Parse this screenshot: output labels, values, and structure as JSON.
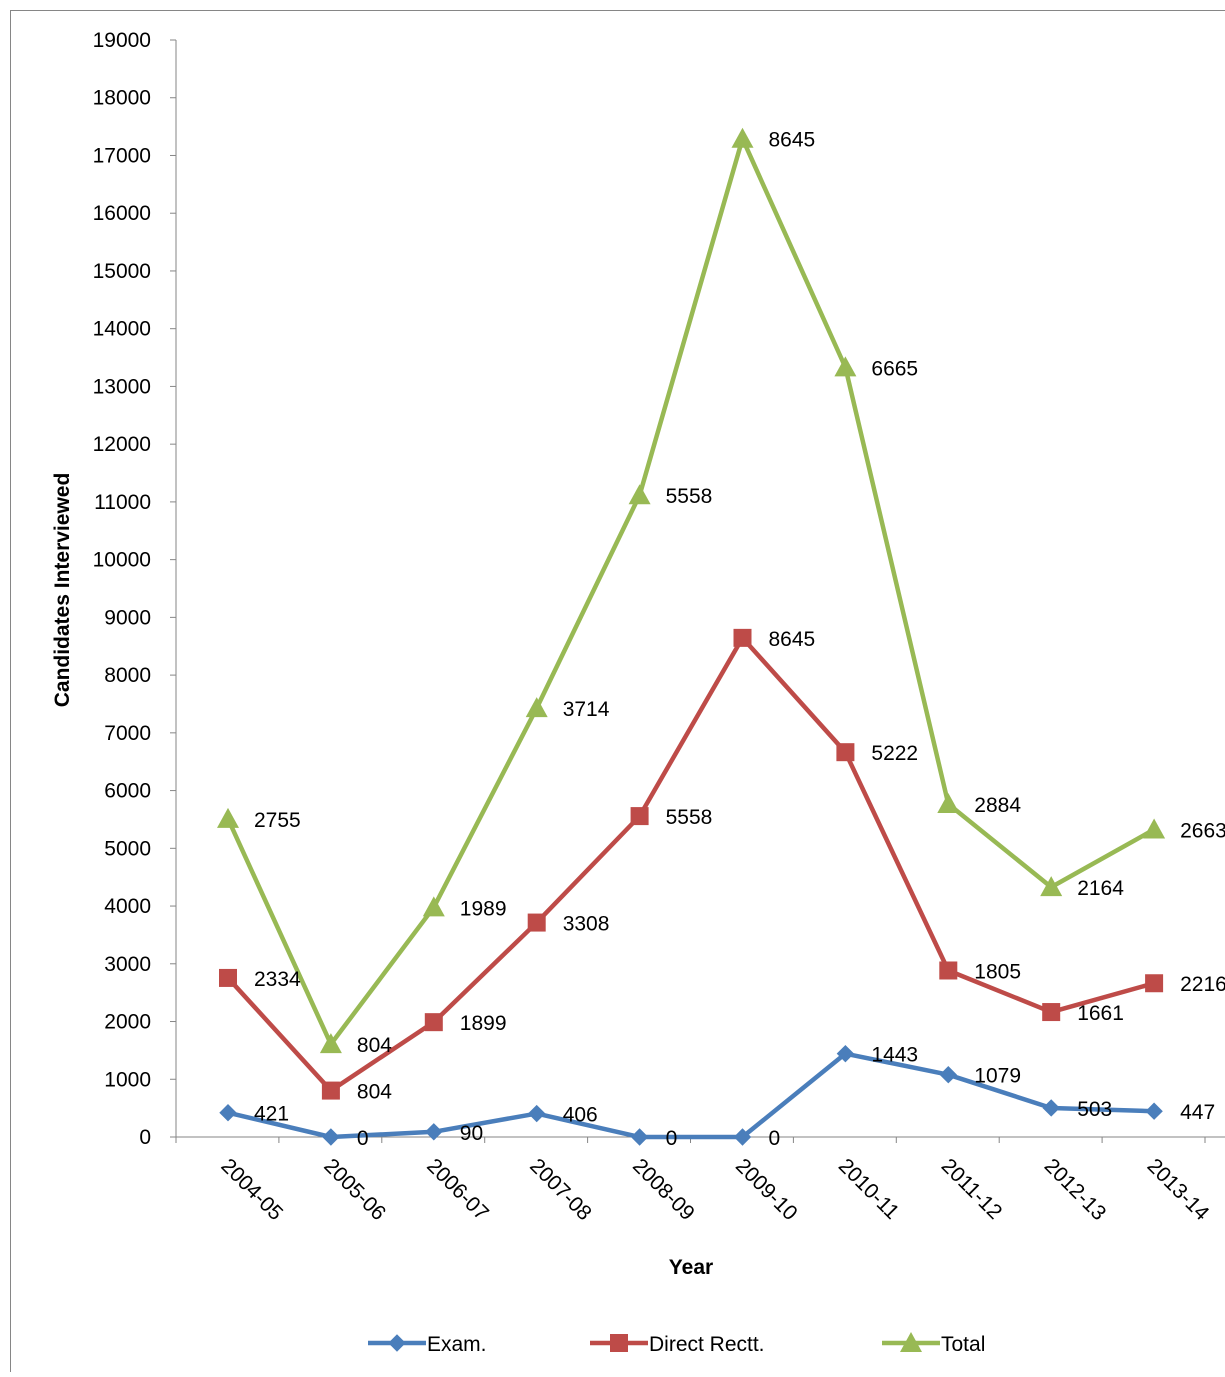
{
  "chart_data": {
    "type": "line",
    "xlabel": "Year",
    "ylabel": "Candidates Interviewed",
    "ylim": [
      0,
      19000
    ],
    "ytick_step": 1000,
    "grid": false,
    "legend_position": "bottom",
    "categories": [
      "2004-05",
      "2005-06",
      "2006-07",
      "2007-08",
      "2008-09",
      "2009-10",
      "2010-11",
      "2011-12",
      "2012-13",
      "2013-14"
    ],
    "series": [
      {
        "name": "Exam.",
        "color": "#4a7ebb",
        "marker": "diamond",
        "values": [
          421,
          0,
          90,
          406,
          0,
          0,
          1443,
          1079,
          503,
          447
        ],
        "labels": [
          "421",
          "0",
          "90",
          "406",
          "0",
          "0",
          "1443",
          "1079",
          "503",
          "447"
        ]
      },
      {
        "name": "Direct Rectt.",
        "color": "#be4b48",
        "marker": "square",
        "values": [
          2755,
          804,
          1989,
          3714,
          5558,
          8645,
          6665,
          2884,
          2164,
          2663
        ],
        "labels": [
          "2334",
          "804",
          "1899",
          "3308",
          "5558",
          "8645",
          "5222",
          "1805",
          "1661",
          "2216"
        ]
      },
      {
        "name": "Total",
        "color": "#98b954",
        "marker": "triangle",
        "values": [
          5510,
          1608,
          3978,
          7428,
          11116,
          17290,
          13330,
          5768,
          4328,
          5326
        ],
        "labels": [
          "2755",
          "804",
          "1989",
          "3714",
          "5558",
          "8645",
          "6665",
          "2884",
          "2164",
          "2663"
        ]
      }
    ]
  }
}
